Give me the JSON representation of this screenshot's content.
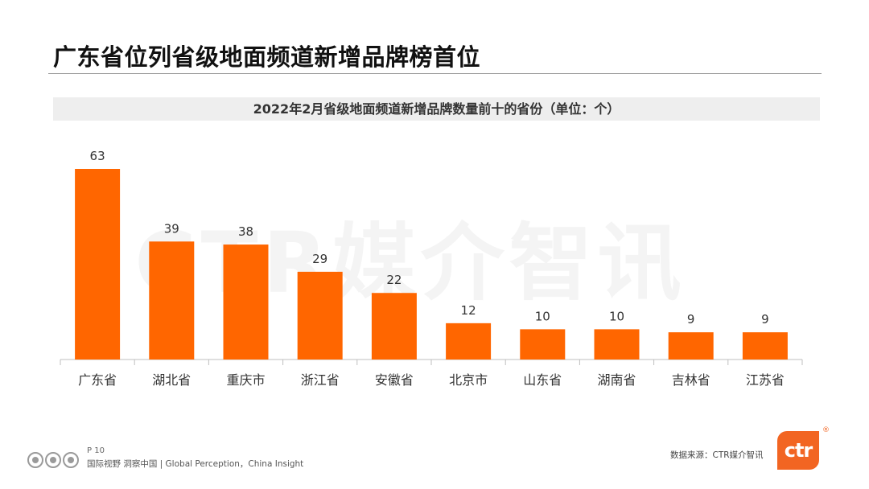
{
  "slide": {
    "title": "广东省位列省级地面频道新增品牌榜首位",
    "watermark": "CTR媒介智讯",
    "page_number": "P 10",
    "tagline": "国际视野  洞察中国 | Global Perception，China Insight",
    "source": "数据来源：CTR媒介智讯",
    "brand_logo_text": "ctr",
    "registered_mark": "®"
  },
  "colors": {
    "bar": "#ff6600",
    "axis": "#bfbfbf",
    "banner": "#eeeeee"
  },
  "chart_data": {
    "type": "bar",
    "title": "2022年2月省级地面频道新增品牌数量前十的省份（单位：个）",
    "categories": [
      "广东省",
      "湖北省",
      "重庆市",
      "浙江省",
      "安徽省",
      "北京市",
      "山东省",
      "湖南省",
      "吉林省",
      "江苏省"
    ],
    "values": [
      63,
      39,
      38,
      29,
      22,
      12,
      10,
      10,
      9,
      9
    ],
    "ylim": [
      0,
      63
    ],
    "xlabel": "",
    "ylabel": "",
    "data_labels": true,
    "grid": false,
    "legend": "none"
  }
}
